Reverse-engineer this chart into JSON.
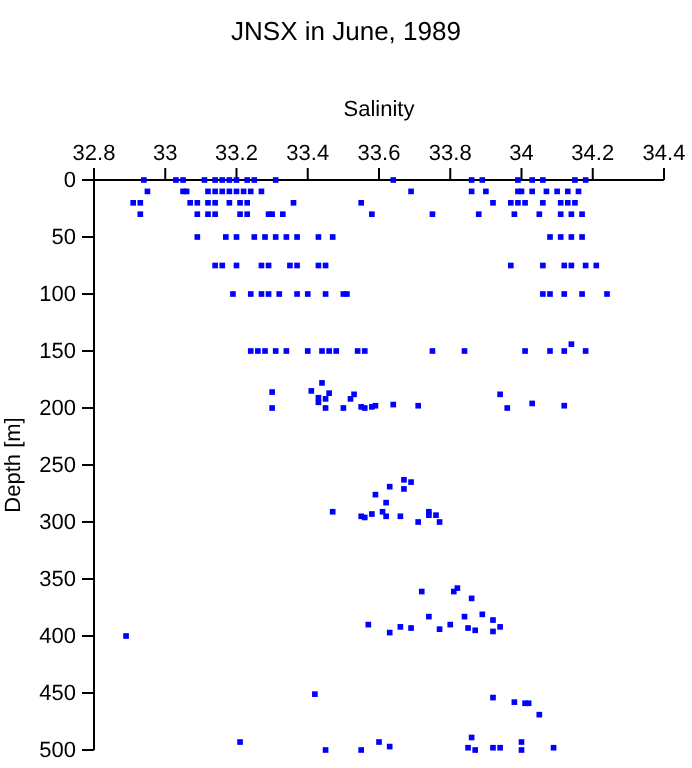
{
  "chart_data": {
    "type": "scatter",
    "title": "JNSX in June, 1989",
    "xlabel": "Salinity",
    "ylabel": "Depth [m]",
    "xlim": [
      32.8,
      34.4
    ],
    "xticks": [
      {
        "value": 32.8,
        "label": "32.8"
      },
      33,
      {
        "value": 33.2,
        "label": "33.2"
      },
      {
        "value": 33.4,
        "label": "33.4"
      },
      {
        "value": 33.6,
        "label": "33.6"
      },
      {
        "value": 33.8,
        "label": "33.8"
      },
      34,
      {
        "value": 34.2,
        "label": "34.2"
      },
      {
        "value": 34.4,
        "label": "34.4"
      }
    ],
    "ylim": [
      500,
      0
    ],
    "yticks": [
      0,
      50,
      100,
      150,
      200,
      250,
      300,
      350,
      400,
      450,
      500
    ],
    "grid": false,
    "marker": "square",
    "series": [
      {
        "color": "#0000ff",
        "x": [
          32.94,
          33.03,
          33.05,
          33.11,
          33.14,
          33.16,
          33.18,
          33.2,
          33.23,
          33.25,
          33.31,
          33.64,
          33.86,
          33.89,
          33.99,
          34.03,
          34.06,
          34.15,
          34.18,
          32.95,
          33.05,
          33.06,
          33.12,
          33.14,
          33.16,
          33.18,
          33.2,
          33.22,
          33.24,
          33.27,
          33.69,
          33.86,
          33.9,
          33.99,
          34.0,
          34.03,
          34.07,
          34.1,
          34.13,
          34.16,
          32.91,
          32.93,
          33.07,
          33.09,
          33.12,
          33.14,
          33.18,
          33.21,
          33.23,
          33.36,
          33.55,
          33.92,
          33.97,
          33.99,
          34.01,
          34.06,
          34.11,
          34.13,
          34.15,
          32.93,
          33.09,
          33.12,
          33.14,
          33.21,
          33.23,
          33.29,
          33.3,
          33.33,
          33.58,
          33.75,
          33.88,
          33.98,
          34.05,
          34.11,
          34.14,
          34.17,
          33.09,
          33.17,
          33.2,
          33.25,
          33.28,
          33.31,
          33.34,
          33.37,
          33.43,
          33.47,
          34.08,
          34.11,
          34.14,
          34.17,
          33.14,
          33.16,
          33.2,
          33.27,
          33.29,
          33.35,
          33.37,
          33.43,
          33.45,
          33.97,
          34.06,
          34.12,
          34.14,
          34.18,
          34.21,
          33.19,
          33.24,
          33.27,
          33.29,
          33.32,
          33.37,
          33.4,
          33.45,
          33.5,
          33.51,
          34.06,
          34.08,
          34.12,
          34.17,
          34.24,
          33.24,
          33.26,
          33.28,
          33.31,
          33.34,
          33.4,
          33.44,
          33.46,
          33.48,
          33.54,
          33.56,
          33.75,
          33.84,
          34.01,
          34.08,
          34.12,
          34.18,
          34.14,
          33.3,
          33.41,
          33.44,
          33.46,
          33.43,
          33.43,
          33.45,
          33.53,
          33.52,
          33.45,
          33.5,
          33.55,
          33.56,
          33.58,
          33.59,
          33.64,
          33.71,
          33.3,
          33.94,
          33.96,
          34.03,
          34.12,
          33.67,
          33.69,
          33.63,
          33.67,
          33.59,
          33.62,
          33.47,
          33.55,
          33.56,
          33.58,
          33.61,
          33.62,
          33.66,
          33.74,
          33.74,
          33.76,
          33.71,
          33.77,
          33.72,
          33.81,
          33.82,
          33.86,
          33.84,
          33.89,
          33.92,
          33.94,
          33.92,
          33.74,
          33.66,
          33.69,
          33.77,
          33.8,
          33.85,
          33.87,
          33.57,
          33.63,
          32.89,
          33.42,
          33.92,
          33.98,
          34.01,
          34.02,
          34.05,
          33.21,
          33.86,
          34.0,
          33.45,
          33.55,
          33.6,
          33.63,
          33.85,
          33.87,
          33.92,
          33.94,
          34.0,
          34.09
        ],
        "values": [
          0,
          0,
          0,
          0,
          0,
          0,
          0,
          0,
          0,
          0,
          0,
          0,
          0,
          0,
          0,
          0,
          0,
          0,
          0,
          10,
          10,
          10,
          10,
          10,
          10,
          10,
          10,
          10,
          10,
          10,
          10,
          10,
          10,
          10,
          10,
          10,
          10,
          10,
          10,
          10,
          20,
          20,
          20,
          20,
          20,
          20,
          20,
          20,
          20,
          20,
          20,
          20,
          20,
          20,
          20,
          20,
          20,
          20,
          20,
          30,
          30,
          30,
          30,
          30,
          30,
          30,
          30,
          30,
          30,
          30,
          30,
          30,
          30,
          30,
          30,
          30,
          50,
          50,
          50,
          50,
          50,
          50,
          50,
          50,
          50,
          50,
          50,
          50,
          50,
          50,
          75,
          75,
          75,
          75,
          75,
          75,
          75,
          75,
          75,
          75,
          75,
          75,
          75,
          75,
          75,
          100,
          100,
          100,
          100,
          100,
          100,
          100,
          100,
          100,
          100,
          100,
          100,
          100,
          100,
          100,
          150,
          150,
          150,
          150,
          150,
          150,
          150,
          150,
          150,
          150,
          150,
          150,
          150,
          150,
          150,
          150,
          150,
          144,
          186,
          185,
          178,
          187,
          191,
          195,
          192,
          188,
          192,
          200,
          200,
          199,
          200,
          199,
          198,
          197,
          198,
          200,
          188,
          200,
          196,
          198,
          263,
          265,
          269,
          271,
          276,
          283,
          291,
          295,
          296,
          293,
          291,
          295,
          295,
          291,
          294,
          294,
          300,
          300,
          361,
          361,
          358,
          367,
          383,
          381,
          386,
          392,
          396,
          383,
          392,
          393,
          394,
          390,
          393,
          395,
          390,
          397,
          400,
          451,
          454,
          458,
          459,
          459,
          469,
          493,
          489,
          493,
          500,
          500,
          493,
          497,
          498,
          500,
          498,
          498,
          500,
          498
        ]
      }
    ]
  }
}
